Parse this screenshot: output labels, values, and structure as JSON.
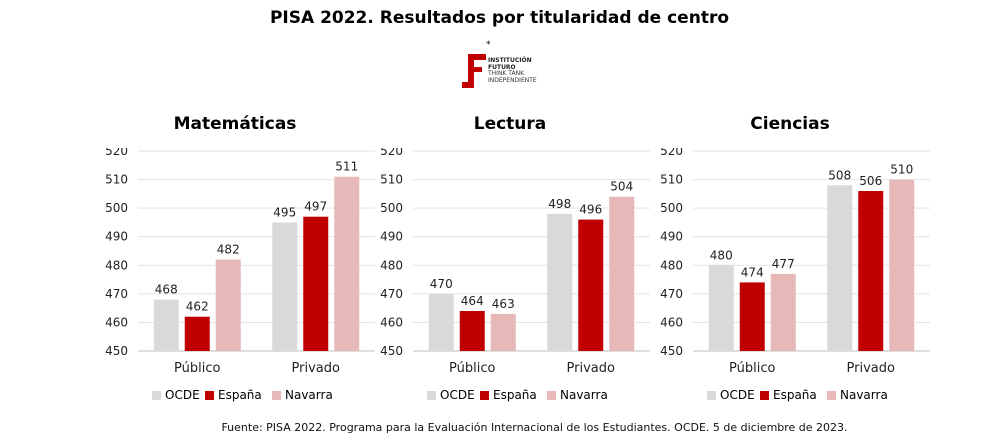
{
  "title": "PISA 2022. Resultados por titularidad de centro",
  "logo": {
    "line1": "INSTITUCIÓN",
    "line2": "FUTURO",
    "line3": "THINK TANK",
    "line4": "INDEPENDIENTE",
    "star": "*"
  },
  "colors": {
    "OCDE": "#d9d9d9",
    "España": "#c00000",
    "Navarra": "#e6b8b7"
  },
  "chart_data": [
    {
      "type": "bar",
      "title": "Matemáticas",
      "categories": [
        "Público",
        "Privado"
      ],
      "series": [
        {
          "name": "OCDE",
          "values": [
            468,
            495
          ]
        },
        {
          "name": "España",
          "values": [
            462,
            497
          ]
        },
        {
          "name": "Navarra",
          "values": [
            482,
            511
          ]
        }
      ],
      "ylim": [
        450,
        520
      ],
      "yticks": [
        450,
        460,
        470,
        480,
        490,
        500,
        510,
        520
      ],
      "grid": true,
      "legend": "bottom"
    },
    {
      "type": "bar",
      "title": "Lectura",
      "categories": [
        "Público",
        "Privado"
      ],
      "series": [
        {
          "name": "OCDE",
          "values": [
            470,
            498
          ]
        },
        {
          "name": "España",
          "values": [
            464,
            496
          ]
        },
        {
          "name": "Navarra",
          "values": [
            463,
            504
          ]
        }
      ],
      "ylim": [
        450,
        520
      ],
      "yticks": [
        450,
        460,
        470,
        480,
        490,
        500,
        510,
        520
      ],
      "grid": true,
      "legend": "bottom"
    },
    {
      "type": "bar",
      "title": "Ciencias",
      "categories": [
        "Público",
        "Privado"
      ],
      "series": [
        {
          "name": "OCDE",
          "values": [
            480,
            508
          ]
        },
        {
          "name": "España",
          "values": [
            474,
            506
          ]
        },
        {
          "name": "Navarra",
          "values": [
            477,
            510
          ]
        }
      ],
      "ylim": [
        450,
        520
      ],
      "yticks": [
        450,
        460,
        470,
        480,
        490,
        500,
        510,
        520
      ],
      "grid": true,
      "legend": "bottom"
    }
  ],
  "footer": "Fuente: PISA 2022. Programa para la Evaluación Internacional de los Estudiantes. OCDE. 5 de diciembre de 2023."
}
